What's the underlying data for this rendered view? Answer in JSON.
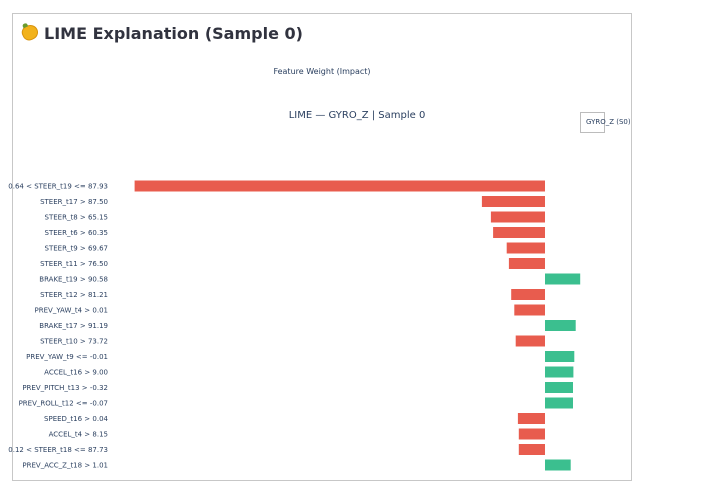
{
  "page": {
    "heading": "LIME Explanation (Sample 0)",
    "heading_icon": "lemon-icon"
  },
  "chart_data": {
    "type": "bar",
    "orientation": "horizontal",
    "subtitle": "Feature Weight (Impact)",
    "title": "LIME — GYRO_Z | Sample 0",
    "legend": {
      "label": "GYRO_Z (S0)",
      "placement": "top-right"
    },
    "colors": {
      "positive": "#3bbf8f",
      "negative": "#e85c4e"
    },
    "grid": false,
    "xlim": [
      -1.0,
      0.08
    ],
    "categories": [
      "0.64 < STEER_t19 <= 87.93",
      "STEER_t17 > 87.50",
      "STEER_t8 > 65.15",
      "STEER_t6 > 60.35",
      "STEER_t9 > 69.67",
      "STEER_t11 > 76.50",
      "BRAKE_t19 > 90.58",
      "STEER_t12 > 81.21",
      "PREV_YAW_t4 > 0.01",
      "BRAKE_t17 > 91.19",
      "STEER_t10 > 73.72",
      "PREV_YAW_t9 <= -0.01",
      "ACCEL_t16 > 9.00",
      "PREV_PITCH_t13 > -0.32",
      "PREV_ROLL_t12 <= -0.07",
      "SPEED_t16 > 0.04",
      "ACCEL_t4 > 8.15",
      "0.12 < STEER_t18 <= 87.73",
      "PREV_ACC_Z_t18 > 1.01"
    ],
    "values": [
      -0.91,
      -0.14,
      -0.12,
      -0.115,
      -0.085,
      -0.08,
      0.078,
      -0.075,
      -0.068,
      0.068,
      -0.065,
      0.065,
      0.063,
      0.062,
      0.062,
      -0.06,
      -0.058,
      -0.058,
      0.057
    ]
  }
}
